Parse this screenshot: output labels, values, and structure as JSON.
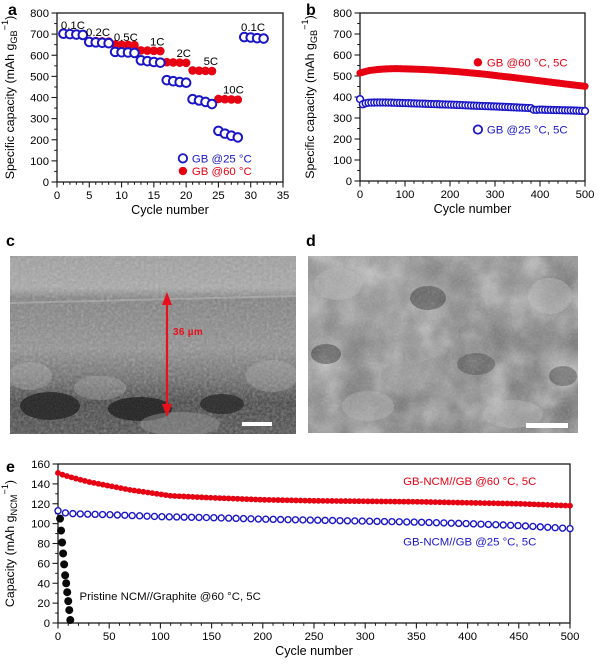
{
  "panel_labels": {
    "a": "a",
    "b": "b",
    "c": "c",
    "d": "d",
    "e": "e"
  },
  "colors": {
    "red": "#e60012",
    "blue": "#1a16c8",
    "black": "#0a0a0a"
  },
  "sem": {
    "c": {
      "thickness_label": "36 µm"
    },
    "d": {}
  },
  "chart_data": [
    {
      "panel": "a",
      "type": "scatter",
      "xlabel": "Cycle number",
      "ylabel": {
        "pre": "Specific capacity (mAh g",
        "sub": "GB",
        "sup": "−1",
        "post": ")"
      },
      "xlim": [
        0,
        35
      ],
      "ylim": [
        0,
        800
      ],
      "xticks": [
        0,
        5,
        10,
        15,
        20,
        25,
        30,
        35
      ],
      "yticks": [
        0,
        100,
        200,
        300,
        400,
        500,
        600,
        700,
        800
      ],
      "xminor": 1,
      "yminor": 50,
      "grid": false,
      "legend_position": "lower right",
      "series": [
        {
          "name": "GB @60 °C",
          "color": "#e60012",
          "marker": "filled",
          "r": 4.3,
          "x": [
            1,
            2,
            3,
            4,
            5,
            6,
            7,
            8,
            9,
            10,
            11,
            12,
            13,
            14,
            15,
            16,
            17,
            18,
            19,
            20,
            21,
            22,
            23,
            24,
            25,
            26,
            27,
            28,
            29,
            30,
            31,
            32
          ],
          "y": [
            700,
            700,
            699,
            698,
            668,
            667,
            666,
            665,
            651,
            650,
            649,
            648,
            623,
            622,
            621,
            620,
            567,
            566,
            565,
            564,
            528,
            527,
            526,
            525,
            393,
            392,
            391,
            390,
            684,
            683,
            682,
            681
          ]
        },
        {
          "name": "GB @25 °C",
          "color": "#1a16c8",
          "marker": "open",
          "r": 4.3,
          "sw": 2,
          "x": [
            1,
            2,
            3,
            4,
            5,
            6,
            7,
            8,
            9,
            10,
            11,
            12,
            13,
            14,
            15,
            16,
            17,
            18,
            19,
            20,
            21,
            22,
            23,
            24,
            25,
            26,
            27,
            28,
            29,
            30,
            31,
            32
          ],
          "y": [
            702,
            700,
            698,
            696,
            663,
            661,
            659,
            657,
            616,
            614,
            613,
            611,
            576,
            572,
            568,
            565,
            482,
            477,
            473,
            470,
            392,
            386,
            379,
            369,
            242,
            229,
            219,
            211,
            686,
            684,
            681,
            679
          ]
        }
      ],
      "annotations": [
        {
          "text": "0.1C",
          "x": 0.6,
          "y": 725
        },
        {
          "text": "0.2C",
          "x": 4.5,
          "y": 692
        },
        {
          "text": "0.5C",
          "x": 8.8,
          "y": 668
        },
        {
          "text": "1C",
          "x": 14.4,
          "y": 645
        },
        {
          "text": "2C",
          "x": 18.5,
          "y": 592
        },
        {
          "text": "5C",
          "x": 22.7,
          "y": 553
        },
        {
          "text": "10C",
          "x": 25.7,
          "y": 420
        },
        {
          "text": "0.1C",
          "x": 28.5,
          "y": 714
        },
        {
          "marker": "open",
          "color": "#1a16c8",
          "text": "GB @25 °C",
          "x": 19.5,
          "y": 112
        },
        {
          "marker": "filled",
          "color": "#e60012",
          "text": "GB @60 °C",
          "x": 19.5,
          "y": 52
        }
      ]
    },
    {
      "panel": "b",
      "type": "scatter",
      "xlabel": "Cycle number",
      "ylabel": {
        "pre": "Specific capacity (mAh g",
        "sub": "GB",
        "sup": "−1",
        "post": ")"
      },
      "xlim": [
        0,
        500
      ],
      "ylim": [
        0,
        800
      ],
      "xticks": [
        0,
        100,
        200,
        300,
        400,
        500
      ],
      "yticks": [
        0,
        100,
        200,
        300,
        400,
        500,
        600,
        700,
        800
      ],
      "xminor": 20,
      "yminor": 50,
      "grid": false,
      "legend_position": "inline",
      "series": [
        {
          "name": "GB @60 °C, 5C",
          "color": "#e60012",
          "marker": "filled",
          "r": 3.6,
          "n_markers": 95,
          "x": [
            0,
            20,
            40,
            60,
            80,
            100,
            130,
            160,
            190,
            220,
            250,
            280,
            310,
            340,
            370,
            400,
            430,
            460,
            480,
            500
          ],
          "y": [
            514,
            526,
            531,
            534,
            535,
            534,
            532,
            529,
            525,
            520,
            514,
            508,
            500,
            493,
            485,
            477,
            469,
            461,
            456,
            451
          ]
        },
        {
          "name": "GB @25 °C, 5C",
          "color": "#1a16c8",
          "marker": "open",
          "r": 3.4,
          "sw": 1.5,
          "n_markers": 80,
          "x": [
            0,
            4,
            10,
            20,
            40,
            70,
            100,
            140,
            180,
            220,
            260,
            300,
            340,
            380,
            388,
            396,
            430,
            470,
            500
          ],
          "y": [
            390,
            363,
            369,
            373,
            374,
            373,
            371,
            368,
            365,
            362,
            358,
            355,
            351,
            347,
            337,
            340,
            338,
            336,
            333
          ]
        }
      ],
      "annotations": [
        {
          "marker": "filled",
          "color": "#e60012",
          "text": "GB @60 °C, 5C",
          "x": 262,
          "y": 565
        },
        {
          "marker": "open",
          "color": "#1a16c8",
          "text": "GB @25 °C, 5C",
          "x": 262,
          "y": 245
        }
      ]
    },
    {
      "panel": "e",
      "type": "scatter",
      "xlabel": "Cycle number",
      "ylabel": {
        "pre": "Capacity (mAh g",
        "sub": "NCM",
        "sup": "−1",
        "post": ")"
      },
      "xlim": [
        0,
        500
      ],
      "ylim": [
        0,
        160
      ],
      "xticks": [
        0,
        50,
        100,
        150,
        200,
        250,
        300,
        350,
        400,
        450,
        500
      ],
      "yticks": [
        0,
        20,
        40,
        60,
        80,
        100,
        120,
        140,
        160
      ],
      "xminor": 10,
      "yminor": 10,
      "grid": false,
      "legend_position": "inline",
      "series": [
        {
          "name": "GB-NCM//GB @60 °C, 5C",
          "color": "#e60012",
          "marker": "filled",
          "r": 2.9,
          "n_markers": 115,
          "x": [
            0,
            5,
            15,
            30,
            50,
            70,
            90,
            110,
            130,
            150,
            175,
            200,
            250,
            300,
            350,
            400,
            450,
            500
          ],
          "y": [
            151,
            149,
            146,
            142,
            138,
            134,
            131,
            128,
            127,
            126,
            125,
            124,
            123,
            122.5,
            122,
            121,
            120,
            118
          ]
        },
        {
          "name": "GB-NCM//GB @25 °C, 5C",
          "color": "#1a16c8",
          "marker": "open",
          "r": 3,
          "sw": 1.4,
          "n_markers": 70,
          "x": [
            0,
            5,
            15,
            30,
            50,
            75,
            100,
            150,
            200,
            250,
            300,
            350,
            400,
            450,
            500
          ],
          "y": [
            113,
            111,
            110,
            109.5,
            109,
            108,
            107,
            106,
            104.5,
            103.5,
            102.5,
            101.5,
            100,
            98,
            95
          ]
        },
        {
          "name": "Pristine NCM//Graphite @60 °C, 5C",
          "color": "#0a0a0a",
          "marker": "filled",
          "r": 4,
          "x": [
            2,
            3,
            4,
            5,
            6,
            7,
            8,
            9,
            10,
            11,
            12
          ],
          "y": [
            105,
            93,
            81,
            70,
            59,
            48,
            40,
            31,
            22,
            13,
            3
          ]
        }
      ],
      "annotations": [
        {
          "text": "GB-NCM//GB @60 °C, 5C",
          "x": 337,
          "y": 139,
          "color": "#e60012"
        },
        {
          "text": "GB-NCM//GB @25 °C, 5C",
          "x": 337,
          "y": 78,
          "color": "#1a16c8"
        },
        {
          "text": "Pristine NCM//Graphite @60 °C, 5C",
          "x": 21,
          "y": 23,
          "color": "#0a0a0a"
        }
      ]
    }
  ]
}
